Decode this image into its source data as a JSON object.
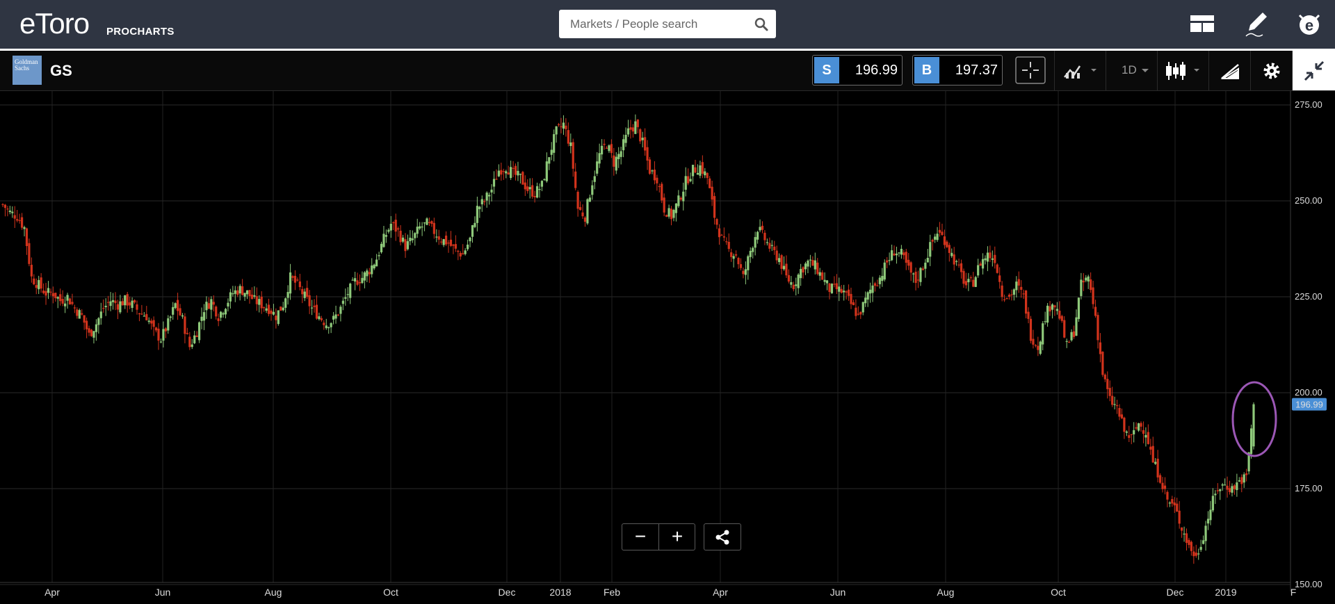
{
  "header": {
    "logo_text": "eToro",
    "sub_brand": "PROCHARTS",
    "search_placeholder": "Markets / People search"
  },
  "instrument": {
    "symbol": "GS",
    "logo_text": "Goldman Sachs",
    "sell_label": "S",
    "sell_price": "196.99",
    "buy_label": "B",
    "buy_price": "197.37",
    "timeframe": "1D"
  },
  "chart_data": {
    "type": "candlestick",
    "y_ticks": [
      "275.00",
      "250.00",
      "225.00",
      "200.00",
      "175.00",
      "150.00"
    ],
    "ylim": [
      150,
      275
    ],
    "x_labels": [
      "Apr",
      "Jun",
      "Aug",
      "Oct",
      "Dec",
      "2018",
      "Feb",
      "Apr",
      "Jun",
      "Aug",
      "Oct",
      "Dec",
      "2019",
      "F"
    ],
    "last_price_label": "196.99",
    "up_color": "#8ec97a",
    "down_color": "#d2331c",
    "highlight_color": "#9b57b5",
    "close_series": [
      249,
      247,
      246,
      243,
      230,
      228,
      226,
      226,
      224,
      225,
      222,
      220,
      215,
      218,
      222,
      224,
      223,
      224,
      223,
      221,
      220,
      216,
      214,
      218,
      223,
      219,
      212,
      216,
      222,
      224,
      220,
      223,
      226,
      227,
      226,
      224,
      223,
      222,
      220,
      223,
      230,
      228,
      225,
      222,
      220,
      218,
      219,
      222,
      226,
      229,
      230,
      232,
      235,
      240,
      244,
      242,
      238,
      240,
      243,
      244,
      242,
      240,
      239,
      237,
      236,
      240,
      248,
      250,
      253,
      258,
      259,
      257,
      256,
      253,
      252,
      254,
      262,
      268,
      270,
      264,
      248,
      246,
      255,
      262,
      265,
      260,
      263,
      268,
      270,
      265,
      258,
      256,
      248,
      246,
      250,
      255,
      258,
      259,
      256,
      246,
      240,
      237,
      236,
      230,
      237,
      243,
      240,
      237,
      235,
      230,
      228,
      232,
      234,
      233,
      230,
      227,
      227,
      226,
      223,
      220,
      224,
      228,
      230,
      234,
      237,
      236,
      232,
      229,
      233,
      238,
      242,
      240,
      236,
      232,
      228,
      229,
      234,
      236,
      235,
      226,
      225,
      228,
      225,
      215,
      212,
      220,
      224,
      220,
      212,
      216,
      228,
      230,
      220,
      205,
      198,
      196,
      190,
      188,
      192,
      190,
      182,
      178,
      172,
      170,
      165,
      160,
      157,
      163,
      170,
      175,
      176,
      175,
      177,
      178,
      196.99
    ]
  }
}
